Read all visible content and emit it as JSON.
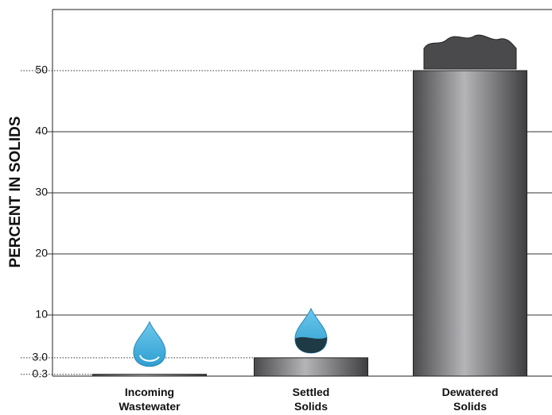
{
  "chart_data": {
    "type": "bar",
    "y_label": "PERCENT IN SOLIDS",
    "categories": [
      "Incoming\nWastewater",
      "Settled\nSolids",
      "Dewatered\nSolids"
    ],
    "values": [
      0.3,
      3,
      50
    ],
    "color": "#8a8a8c",
    "ylim": [
      0,
      60
    ],
    "yticks": [
      0.3,
      {
        "value": 3,
        "label": "3.0"
      },
      10,
      20,
      30,
      40,
      50
    ],
    "grid": true
  }
}
